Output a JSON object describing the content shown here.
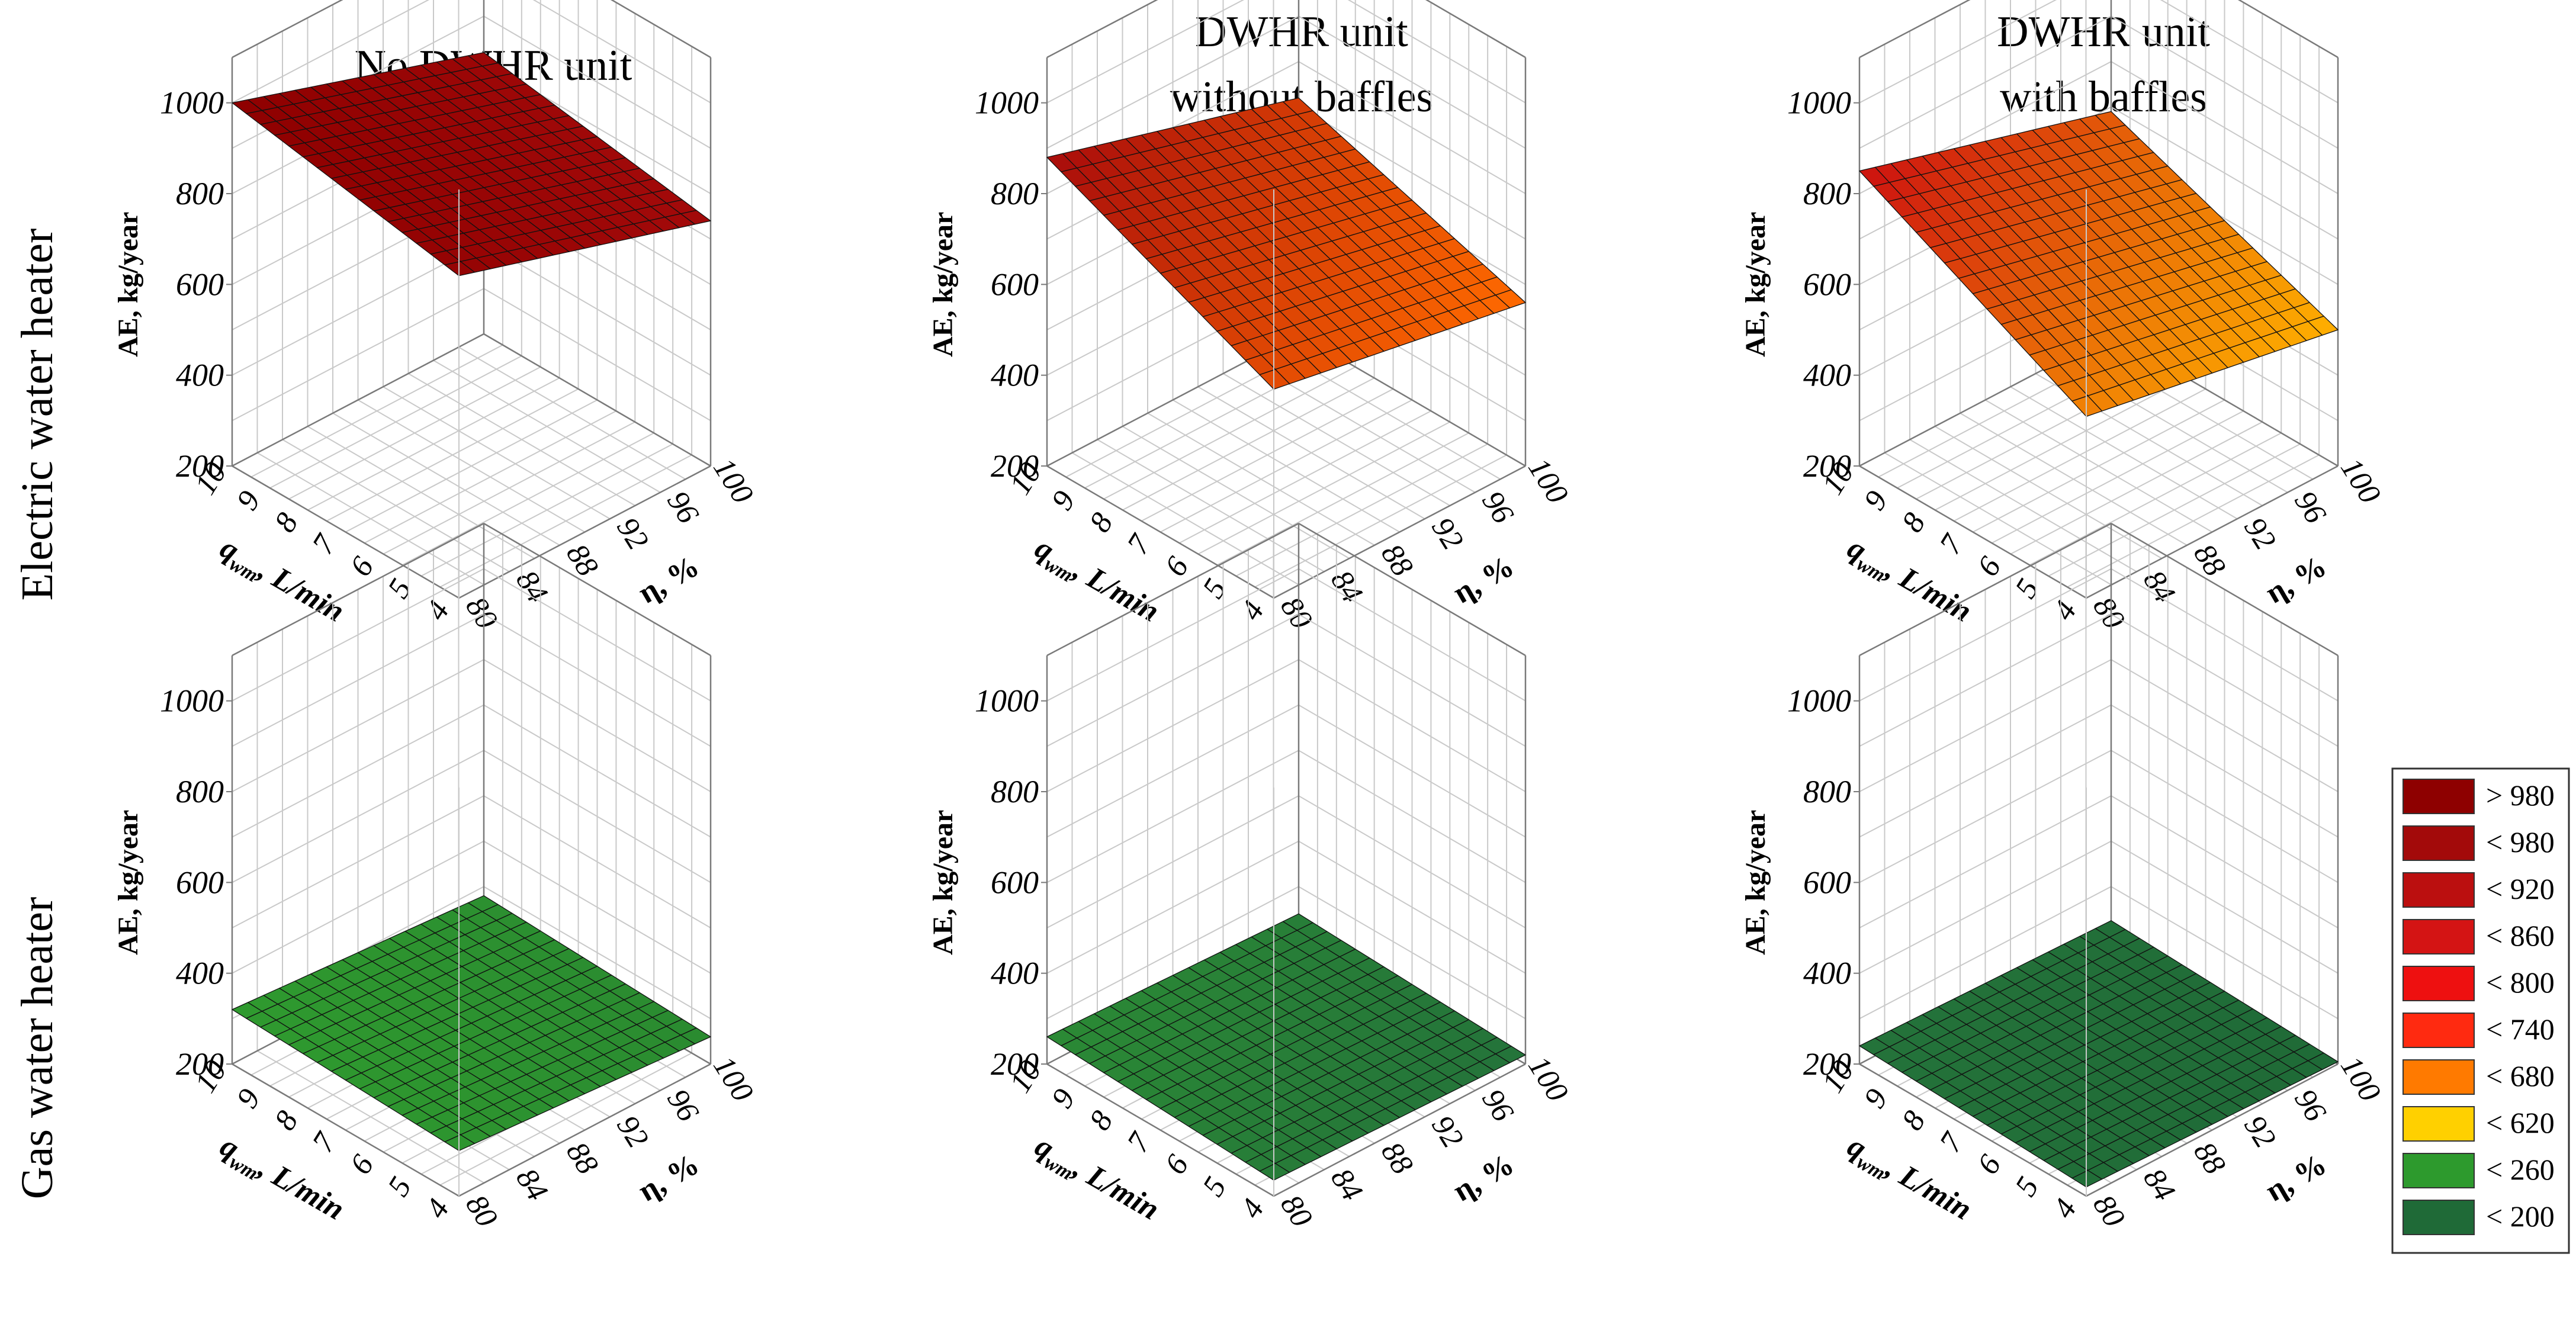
{
  "figure": {
    "col_titles": [
      {
        "lines": [
          "No DWHR unit"
        ]
      },
      {
        "lines": [
          "DWHR unit",
          "without baffles"
        ]
      },
      {
        "lines": [
          "DWHR unit",
          "with baffles"
        ]
      }
    ],
    "row_titles": [
      "Electric water heater",
      "Gas water heater"
    ],
    "axis_labels": {
      "z": "AE, kg/year",
      "x": "q_wm, L/min",
      "x_main": "q",
      "x_sub": "wm",
      "x_rest": ", L/min",
      "y": "η, %"
    }
  },
  "legend": {
    "entries": [
      {
        "label": "> 980",
        "color": "#8e0000"
      },
      {
        "label": "< 980",
        "color": "#a30a0a"
      },
      {
        "label": "< 920",
        "color": "#bb0f0f"
      },
      {
        "label": "< 860",
        "color": "#d41414"
      },
      {
        "label": "< 800",
        "color": "#ee1010"
      },
      {
        "label": "< 740",
        "color": "#ff2a10"
      },
      {
        "label": "< 680",
        "color": "#ff7a00"
      },
      {
        "label": "< 620",
        "color": "#ffd000"
      },
      {
        "label": "< 260",
        "color": "#2d9a2d"
      },
      {
        "label": "< 200",
        "color": "#1f6a37"
      }
    ]
  },
  "chart_data": [
    {
      "type": "surface",
      "title": "No DWHR unit",
      "row": "Electric water heater",
      "xlabel": "q_wm, L/min",
      "ylabel": "η, %",
      "zlabel": "AE, kg/year",
      "x_ticks": [
        "4",
        "5",
        "6",
        "7",
        "8",
        "9",
        "10"
      ],
      "y_ticks": [
        "80",
        "84",
        "88",
        "92",
        "96",
        "100"
      ],
      "z_ticks": [
        "200",
        "400",
        "600",
        "800",
        "1000"
      ],
      "xlim": [
        4,
        10
      ],
      "ylim": [
        80,
        100
      ],
      "zlim": [
        200,
        1100
      ],
      "corner_values": {
        "q10_eta80": 1000,
        "q10_eta100": 820,
        "q4_eta80": 910,
        "q4_eta100": 740
      },
      "colors": [
        "#8e0000",
        "#a30a0a"
      ]
    },
    {
      "type": "surface",
      "title": "DWHR unit without baffles",
      "row": "Electric water heater",
      "xlabel": "q_wm, L/min",
      "ylabel": "η, %",
      "zlabel": "AE, kg/year",
      "x_ticks": [
        "4",
        "5",
        "6",
        "7",
        "8",
        "9",
        "10"
      ],
      "y_ticks": [
        "80",
        "84",
        "88",
        "92",
        "96",
        "100"
      ],
      "z_ticks": [
        "200",
        "400",
        "600",
        "800",
        "1000"
      ],
      "xlim": [
        4,
        10
      ],
      "ylim": [
        80,
        100
      ],
      "zlim": [
        200,
        1100
      ],
      "corner_values": {
        "q10_eta80": 880,
        "q10_eta100": 720,
        "q4_eta80": 660,
        "q4_eta100": 560
      },
      "colors": [
        "#a80b0b",
        "#ff6a00"
      ]
    },
    {
      "type": "surface",
      "title": "DWHR unit with baffles",
      "row": "Electric water heater",
      "xlabel": "q_wm, L/min",
      "ylabel": "η, %",
      "zlabel": "AE, kg/year",
      "x_ticks": [
        "4",
        "5",
        "6",
        "7",
        "8",
        "9",
        "10"
      ],
      "y_ticks": [
        "80",
        "84",
        "88",
        "92",
        "96",
        "100"
      ],
      "z_ticks": [
        "200",
        "400",
        "600",
        "800",
        "1000"
      ],
      "xlim": [
        4,
        10
      ],
      "ylim": [
        80,
        100
      ],
      "zlim": [
        200,
        1100
      ],
      "corner_values": {
        "q10_eta80": 850,
        "q10_eta100": 690,
        "q4_eta80": 600,
        "q4_eta100": 500
      },
      "colors": [
        "#cc1010",
        "#ffb000"
      ]
    },
    {
      "type": "surface",
      "title": "No DWHR unit",
      "row": "Gas water heater",
      "xlabel": "q_wm, L/min",
      "ylabel": "η, %",
      "zlabel": "AE, kg/year",
      "x_ticks": [
        "4",
        "5",
        "6",
        "7",
        "8",
        "9",
        "10"
      ],
      "y_ticks": [
        "80",
        "84",
        "88",
        "92",
        "96",
        "100"
      ],
      "z_ticks": [
        "200",
        "400",
        "600",
        "800",
        "1000"
      ],
      "xlim": [
        4,
        10
      ],
      "ylim": [
        80,
        100
      ],
      "zlim": [
        200,
        1100
      ],
      "corner_values": {
        "q10_eta80": 320,
        "q10_eta100": 280,
        "q4_eta80": 300,
        "q4_eta100": 260
      },
      "colors": [
        "#2f9a2f",
        "#2a8a30"
      ]
    },
    {
      "type": "surface",
      "title": "DWHR unit without baffles",
      "row": "Gas water heater",
      "xlabel": "q_wm, L/min",
      "ylabel": "η, %",
      "zlabel": "AE, kg/year",
      "x_ticks": [
        "4",
        "5",
        "6",
        "7",
        "8",
        "9",
        "10"
      ],
      "y_ticks": [
        "80",
        "84",
        "88",
        "92",
        "96",
        "100"
      ],
      "z_ticks": [
        "200",
        "400",
        "600",
        "800",
        "1000"
      ],
      "xlim": [
        4,
        10
      ],
      "ylim": [
        80,
        100
      ],
      "zlim": [
        200,
        1100
      ],
      "corner_values": {
        "q10_eta80": 260,
        "q10_eta100": 240,
        "q4_eta80": 235,
        "q4_eta100": 220
      },
      "colors": [
        "#2b8a35",
        "#24733a"
      ]
    },
    {
      "type": "surface",
      "title": "DWHR unit with baffles",
      "row": "Gas water heater",
      "xlabel": "q_wm, L/min",
      "ylabel": "η, %",
      "zlabel": "AE, kg/year",
      "x_ticks": [
        "4",
        "5",
        "6",
        "7",
        "8",
        "9",
        "10"
      ],
      "y_ticks": [
        "80",
        "84",
        "88",
        "92",
        "96",
        "100"
      ],
      "z_ticks": [
        "200",
        "400",
        "600",
        "800",
        "1000"
      ],
      "xlim": [
        4,
        10
      ],
      "ylim": [
        80,
        100
      ],
      "zlim": [
        200,
        1100
      ],
      "corner_values": {
        "q10_eta80": 240,
        "q10_eta100": 225,
        "q4_eta80": 220,
        "q4_eta100": 205
      },
      "colors": [
        "#24733a",
        "#1f6a37"
      ]
    }
  ]
}
